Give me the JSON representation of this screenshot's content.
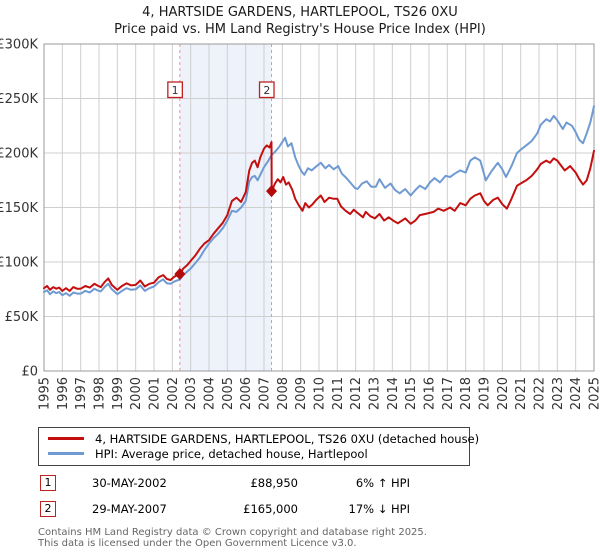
{
  "title": {
    "line1": "4, HARTSIDE GARDENS, HARTLEPOOL, TS26 0XU",
    "line2": "Price paid vs. HM Land Registry's House Price Index (HPI)"
  },
  "chart_data": {
    "type": "line",
    "title": "4, HARTSIDE GARDENS, HARTLEPOOL, TS26 0XU",
    "subtitle": "Price paid vs. HM Land Registry's House Price Index (HPI)",
    "units": "GBP thousands",
    "grid": true,
    "legend_position": "bottom",
    "x_axis": {
      "min": 1995,
      "max": 2025,
      "ticks": [
        1995,
        1996,
        1997,
        1998,
        1999,
        2000,
        2001,
        2002,
        2003,
        2004,
        2005,
        2006,
        2007,
        2008,
        2009,
        2010,
        2011,
        2012,
        2013,
        2014,
        2015,
        2016,
        2017,
        2018,
        2019,
        2020,
        2021,
        2022,
        2023,
        2024,
        2025
      ]
    },
    "y_axis": {
      "min": 0,
      "max": 300,
      "tick_values": [
        0,
        50,
        100,
        150,
        200,
        250,
        300
      ],
      "tick_labels": [
        "£0",
        "£50K",
        "£100K",
        "£150K",
        "£200K",
        "£250K",
        "£300K"
      ]
    },
    "shaded_region": {
      "from": 2002.41,
      "to": 2007.41,
      "color": "#eef2fb"
    },
    "marker_line_color": "#f68f8f",
    "sale_markers": [
      {
        "label": "1",
        "x": 2002.41,
        "y": 88.95
      },
      {
        "label": "2",
        "x": 2007.41,
        "y": 165
      }
    ],
    "series": [
      {
        "name": "HPI: Average price, detached house, Hartlepool",
        "color": "#6f9bd2",
        "points": [
          [
            1995.0,
            72.5
          ],
          [
            1995.17,
            74
          ],
          [
            1995.33,
            70.5
          ],
          [
            1995.5,
            73
          ],
          [
            1995.67,
            71.5
          ],
          [
            1995.83,
            72.5
          ],
          [
            1996.0,
            69.5
          ],
          [
            1996.2,
            71.5
          ],
          [
            1996.4,
            69
          ],
          [
            1996.6,
            72
          ],
          [
            1996.8,
            71
          ],
          [
            1997.0,
            71
          ],
          [
            1997.25,
            73.5
          ],
          [
            1997.5,
            72
          ],
          [
            1997.75,
            75.5
          ],
          [
            1997.9,
            74
          ],
          [
            1998.1,
            73
          ],
          [
            1998.3,
            77
          ],
          [
            1998.5,
            80
          ],
          [
            1998.7,
            75
          ],
          [
            1998.9,
            72
          ],
          [
            1999.0,
            70.5
          ],
          [
            1999.25,
            73.5
          ],
          [
            1999.5,
            76
          ],
          [
            1999.75,
            74.5
          ],
          [
            2000.0,
            75
          ],
          [
            2000.25,
            78.5
          ],
          [
            2000.5,
            73.5
          ],
          [
            2000.75,
            76
          ],
          [
            2001.0,
            77.5
          ],
          [
            2001.25,
            81.5
          ],
          [
            2001.5,
            84
          ],
          [
            2001.7,
            80.5
          ],
          [
            2001.9,
            80
          ],
          [
            2002.1,
            82
          ],
          [
            2002.41,
            84
          ],
          [
            2002.6,
            88
          ],
          [
            2002.8,
            91
          ],
          [
            2003.0,
            94
          ],
          [
            2003.25,
            99
          ],
          [
            2003.5,
            104
          ],
          [
            2003.75,
            111
          ],
          [
            2004.0,
            117
          ],
          [
            2004.25,
            122
          ],
          [
            2004.5,
            126
          ],
          [
            2004.75,
            131
          ],
          [
            2005.0,
            138
          ],
          [
            2005.25,
            147
          ],
          [
            2005.5,
            146
          ],
          [
            2005.75,
            150
          ],
          [
            2006.0,
            156
          ],
          [
            2006.2,
            174
          ],
          [
            2006.35,
            178
          ],
          [
            2006.5,
            179
          ],
          [
            2006.65,
            175
          ],
          [
            2006.8,
            180
          ],
          [
            2007.0,
            187
          ],
          [
            2007.2,
            192
          ],
          [
            2007.41,
            198
          ],
          [
            2007.6,
            201
          ],
          [
            2007.8,
            205
          ],
          [
            2008.0,
            210
          ],
          [
            2008.15,
            214
          ],
          [
            2008.3,
            206
          ],
          [
            2008.5,
            209
          ],
          [
            2008.7,
            196
          ],
          [
            2008.9,
            188
          ],
          [
            2009.05,
            183
          ],
          [
            2009.2,
            180
          ],
          [
            2009.4,
            186
          ],
          [
            2009.6,
            184
          ],
          [
            2009.8,
            187
          ],
          [
            2010.1,
            191
          ],
          [
            2010.35,
            186
          ],
          [
            2010.55,
            189
          ],
          [
            2010.8,
            185
          ],
          [
            2011.05,
            188
          ],
          [
            2011.25,
            181
          ],
          [
            2011.5,
            177
          ],
          [
            2011.75,
            172
          ],
          [
            2011.95,
            168
          ],
          [
            2012.1,
            167
          ],
          [
            2012.35,
            172
          ],
          [
            2012.6,
            174
          ],
          [
            2012.85,
            169
          ],
          [
            2013.1,
            169
          ],
          [
            2013.3,
            176
          ],
          [
            2013.6,
            168
          ],
          [
            2013.9,
            172
          ],
          [
            2014.15,
            166
          ],
          [
            2014.4,
            163
          ],
          [
            2014.7,
            167
          ],
          [
            2015.0,
            161
          ],
          [
            2015.25,
            166
          ],
          [
            2015.5,
            170
          ],
          [
            2015.8,
            167
          ],
          [
            2016.05,
            173
          ],
          [
            2016.3,
            177
          ],
          [
            2016.6,
            173
          ],
          [
            2016.9,
            179
          ],
          [
            2017.15,
            178
          ],
          [
            2017.4,
            181
          ],
          [
            2017.7,
            184
          ],
          [
            2018.0,
            182
          ],
          [
            2018.25,
            193
          ],
          [
            2018.5,
            196
          ],
          [
            2018.8,
            193
          ],
          [
            2019.1,
            175
          ],
          [
            2019.4,
            183
          ],
          [
            2019.75,
            191
          ],
          [
            2020.0,
            185
          ],
          [
            2020.2,
            178
          ],
          [
            2020.5,
            188
          ],
          [
            2020.8,
            200
          ],
          [
            2021.0,
            203
          ],
          [
            2021.3,
            207
          ],
          [
            2021.6,
            211
          ],
          [
            2021.9,
            218
          ],
          [
            2022.1,
            226
          ],
          [
            2022.4,
            231
          ],
          [
            2022.6,
            229
          ],
          [
            2022.8,
            234
          ],
          [
            2023.0,
            230
          ],
          [
            2023.3,
            222
          ],
          [
            2023.5,
            228
          ],
          [
            2023.8,
            225
          ],
          [
            2024.0,
            219
          ],
          [
            2024.2,
            212
          ],
          [
            2024.4,
            209
          ],
          [
            2024.6,
            218
          ],
          [
            2024.8,
            228
          ],
          [
            2025.0,
            243
          ]
        ]
      },
      {
        "name": "4, HARTSIDE GARDENS, HARTLEPOOL, TS26 0XU (detached house)",
        "color": "#c40f0f",
        "points": [
          [
            1995.0,
            76
          ],
          [
            1995.17,
            78
          ],
          [
            1995.33,
            74.5
          ],
          [
            1995.5,
            77
          ],
          [
            1995.67,
            75.5
          ],
          [
            1995.83,
            76.5
          ],
          [
            1996.0,
            73.5
          ],
          [
            1996.2,
            76
          ],
          [
            1996.4,
            73.5
          ],
          [
            1996.6,
            77
          ],
          [
            1996.8,
            75.5
          ],
          [
            1997.0,
            75.5
          ],
          [
            1997.25,
            78
          ],
          [
            1997.5,
            76.5
          ],
          [
            1997.75,
            80
          ],
          [
            1997.9,
            78.5
          ],
          [
            1998.1,
            77
          ],
          [
            1998.3,
            81.5
          ],
          [
            1998.5,
            85
          ],
          [
            1998.7,
            79
          ],
          [
            1998.9,
            76
          ],
          [
            1999.0,
            74.5
          ],
          [
            1999.25,
            78
          ],
          [
            1999.5,
            80.5
          ],
          [
            1999.75,
            78.5
          ],
          [
            2000.0,
            79
          ],
          [
            2000.25,
            83
          ],
          [
            2000.5,
            77.5
          ],
          [
            2000.75,
            80
          ],
          [
            2001.0,
            81
          ],
          [
            2001.25,
            86
          ],
          [
            2001.5,
            88
          ],
          [
            2001.7,
            84.5
          ],
          [
            2001.9,
            83.5
          ],
          [
            2002.1,
            86.5
          ],
          [
            2002.41,
            88.95
          ],
          [
            2002.6,
            94
          ],
          [
            2002.8,
            97
          ],
          [
            2003.0,
            101
          ],
          [
            2003.25,
            106
          ],
          [
            2003.5,
            112
          ],
          [
            2003.75,
            117
          ],
          [
            2004.0,
            120
          ],
          [
            2004.25,
            126
          ],
          [
            2004.5,
            131
          ],
          [
            2004.75,
            136
          ],
          [
            2005.0,
            143
          ],
          [
            2005.25,
            156
          ],
          [
            2005.5,
            159
          ],
          [
            2005.75,
            155
          ],
          [
            2006.0,
            164
          ],
          [
            2006.2,
            184
          ],
          [
            2006.35,
            191
          ],
          [
            2006.5,
            193
          ],
          [
            2006.65,
            187
          ],
          [
            2006.8,
            196
          ],
          [
            2007.0,
            204
          ],
          [
            2007.15,
            207
          ],
          [
            2007.3,
            205
          ],
          [
            2007.41,
            210
          ],
          [
            2007.42,
            165
          ],
          [
            2007.6,
            172
          ],
          [
            2007.75,
            176
          ],
          [
            2007.9,
            173
          ],
          [
            2008.05,
            178
          ],
          [
            2008.2,
            171
          ],
          [
            2008.35,
            173
          ],
          [
            2008.55,
            166
          ],
          [
            2008.7,
            158
          ],
          [
            2008.9,
            152
          ],
          [
            2009.1,
            147
          ],
          [
            2009.25,
            154
          ],
          [
            2009.45,
            150
          ],
          [
            2009.65,
            153
          ],
          [
            2009.85,
            157
          ],
          [
            2010.1,
            161
          ],
          [
            2010.3,
            155
          ],
          [
            2010.55,
            159
          ],
          [
            2010.8,
            158
          ],
          [
            2011.0,
            158
          ],
          [
            2011.2,
            151
          ],
          [
            2011.45,
            147
          ],
          [
            2011.7,
            144
          ],
          [
            2011.9,
            148
          ],
          [
            2012.1,
            145
          ],
          [
            2012.4,
            141
          ],
          [
            2012.55,
            146
          ],
          [
            2012.8,
            142
          ],
          [
            2013.05,
            140
          ],
          [
            2013.3,
            144
          ],
          [
            2013.55,
            138
          ],
          [
            2013.8,
            141
          ],
          [
            2014.05,
            138
          ],
          [
            2014.3,
            135.5
          ],
          [
            2014.7,
            140
          ],
          [
            2015.0,
            135
          ],
          [
            2015.25,
            138
          ],
          [
            2015.5,
            143
          ],
          [
            2015.9,
            144.5
          ],
          [
            2016.25,
            146
          ],
          [
            2016.5,
            149
          ],
          [
            2016.8,
            147
          ],
          [
            2017.15,
            150
          ],
          [
            2017.4,
            147
          ],
          [
            2017.7,
            154
          ],
          [
            2018.0,
            152
          ],
          [
            2018.25,
            158
          ],
          [
            2018.5,
            161
          ],
          [
            2018.8,
            163
          ],
          [
            2019.0,
            156
          ],
          [
            2019.2,
            152
          ],
          [
            2019.5,
            157
          ],
          [
            2019.75,
            159
          ],
          [
            2020.0,
            153
          ],
          [
            2020.25,
            149
          ],
          [
            2020.5,
            158
          ],
          [
            2020.8,
            170
          ],
          [
            2021.0,
            172
          ],
          [
            2021.3,
            175
          ],
          [
            2021.6,
            179
          ],
          [
            2021.9,
            185
          ],
          [
            2022.1,
            190
          ],
          [
            2022.4,
            193
          ],
          [
            2022.6,
            191
          ],
          [
            2022.8,
            195
          ],
          [
            2023.0,
            193
          ],
          [
            2023.4,
            184
          ],
          [
            2023.7,
            188
          ],
          [
            2024.0,
            182
          ],
          [
            2024.2,
            176
          ],
          [
            2024.4,
            171
          ],
          [
            2024.6,
            175
          ],
          [
            2024.8,
            186
          ],
          [
            2025.0,
            202
          ]
        ]
      }
    ]
  },
  "legend": {
    "items": [
      {
        "label": "4, HARTSIDE GARDENS, HARTLEPOOL, TS26 0XU (detached house)",
        "color": "#c40f0f"
      },
      {
        "label": "HPI: Average price, detached house, Hartlepool",
        "color": "#6f9bd2"
      }
    ]
  },
  "transactions": [
    {
      "num": "1",
      "date": "30-MAY-2002",
      "price": "£88,950",
      "hpi": "6% ↑ HPI"
    },
    {
      "num": "2",
      "date": "29-MAY-2007",
      "price": "£165,000",
      "hpi": "17% ↓ HPI"
    }
  ],
  "footer": {
    "line1": "Contains HM Land Registry data © Crown copyright and database right 2025.",
    "line2": "This data is licensed under the Open Government Licence v3.0."
  }
}
